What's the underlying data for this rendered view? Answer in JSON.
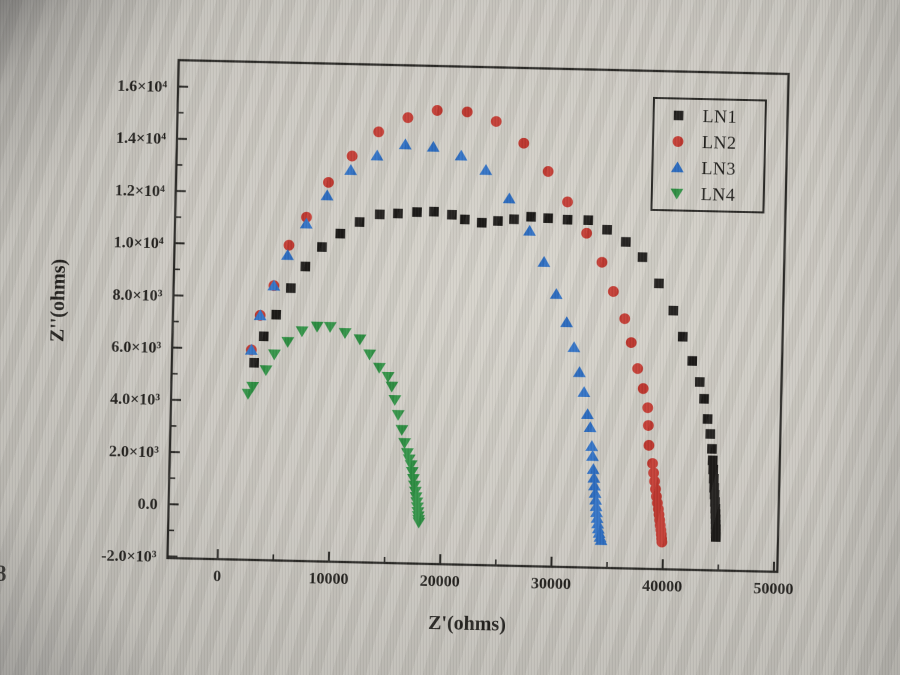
{
  "photo": {
    "stray_left_text": "8"
  },
  "colors": {
    "frame": "#2b2a27",
    "text": "#24221f",
    "ln1": "#1d1b19",
    "ln2": "#c23a31",
    "ln3": "#2f70c4",
    "ln4": "#2f9144"
  },
  "chart_data": {
    "type": "scatter",
    "title": "",
    "xlabel": "Z'(ohms)",
    "ylabel": "Z''(ohms)",
    "xlim": [
      -4600,
      50400
    ],
    "ylim": [
      -2100,
      17050
    ],
    "grid": false,
    "legend_position": "top-right",
    "x_ticks": [
      {
        "value": 0,
        "label": "0"
      },
      {
        "value": 10000,
        "label": "10000"
      },
      {
        "value": 20000,
        "label": "20000"
      },
      {
        "value": 30000,
        "label": "30000"
      },
      {
        "value": 40000,
        "label": "40000"
      },
      {
        "value": 50000,
        "label": "50000"
      }
    ],
    "y_ticks": [
      {
        "value": -2000,
        "label": "-2.0×10³"
      },
      {
        "value": 0,
        "label": "0.0"
      },
      {
        "value": 2000,
        "label": "2.0×10³"
      },
      {
        "value": 4000,
        "label": "4.0×10³"
      },
      {
        "value": 6000,
        "label": "6.0×10³"
      },
      {
        "value": 8000,
        "label": "8.0×10³"
      },
      {
        "value": 10000,
        "label": "1.0×10⁴"
      },
      {
        "value": 12000,
        "label": "1.2×10⁴"
      },
      {
        "value": 14000,
        "label": "1.4×10⁴"
      },
      {
        "value": 16000,
        "label": "1.6×10⁴"
      }
    ],
    "series": [
      {
        "name": "LN1",
        "marker": "square",
        "color": "#1d1b19",
        "points": [
          [
            2880,
            5490
          ],
          [
            3690,
            6510
          ],
          [
            4770,
            7350
          ],
          [
            6030,
            8380
          ],
          [
            7290,
            9220
          ],
          [
            8740,
            9980
          ],
          [
            10360,
            10510
          ],
          [
            12070,
            10970
          ],
          [
            13870,
            11280
          ],
          [
            15500,
            11330
          ],
          [
            17210,
            11400
          ],
          [
            18730,
            11430
          ],
          [
            20350,
            11330
          ],
          [
            21520,
            11160
          ],
          [
            23050,
            11050
          ],
          [
            24500,
            11130
          ],
          [
            25940,
            11210
          ],
          [
            27470,
            11320
          ],
          [
            29000,
            11280
          ],
          [
            30750,
            11240
          ],
          [
            32610,
            11240
          ],
          [
            34320,
            10890
          ],
          [
            36030,
            10440
          ],
          [
            37560,
            9870
          ],
          [
            39090,
            8880
          ],
          [
            40440,
            7850
          ],
          [
            41340,
            6860
          ],
          [
            42240,
            5940
          ],
          [
            42960,
            5140
          ],
          [
            43380,
            4500
          ],
          [
            43740,
            3730
          ],
          [
            44010,
            3160
          ],
          [
            44190,
            2590
          ],
          [
            44280,
            2150
          ],
          [
            44350,
            1800
          ],
          [
            44420,
            1450
          ],
          [
            44470,
            1100
          ],
          [
            44520,
            840
          ],
          [
            44570,
            560
          ],
          [
            44610,
            300
          ],
          [
            44640,
            100
          ],
          [
            44660,
            -100
          ],
          [
            44680,
            -300
          ],
          [
            44700,
            -480
          ],
          [
            44710,
            -640
          ],
          [
            44720,
            -780
          ]
        ]
      },
      {
        "name": "LN2",
        "marker": "circle",
        "color": "#c23a31",
        "points": [
          [
            2610,
            5980
          ],
          [
            3330,
            7310
          ],
          [
            4500,
            8460
          ],
          [
            5770,
            10020
          ],
          [
            7290,
            11110
          ],
          [
            9190,
            12460
          ],
          [
            11260,
            13490
          ],
          [
            13600,
            14440
          ],
          [
            16200,
            15010
          ],
          [
            18820,
            15310
          ],
          [
            21520,
            15280
          ],
          [
            24140,
            14940
          ],
          [
            26660,
            14130
          ],
          [
            28910,
            13070
          ],
          [
            30710,
            11920
          ],
          [
            32490,
            10740
          ],
          [
            33930,
            9640
          ],
          [
            35010,
            8530
          ],
          [
            36090,
            7500
          ],
          [
            36720,
            6590
          ],
          [
            37350,
            5600
          ],
          [
            37890,
            4840
          ],
          [
            38340,
            4110
          ],
          [
            38430,
            3430
          ],
          [
            38520,
            2670
          ],
          [
            38880,
            1980
          ],
          [
            39000,
            1620
          ],
          [
            39100,
            1300
          ],
          [
            39200,
            1000
          ],
          [
            39300,
            720
          ],
          [
            39400,
            470
          ],
          [
            39500,
            240
          ],
          [
            39570,
            30
          ],
          [
            39640,
            -180
          ],
          [
            39700,
            -380
          ],
          [
            39760,
            -560
          ],
          [
            39810,
            -730
          ],
          [
            39850,
            -890
          ],
          [
            39880,
            -1020
          ]
        ]
      },
      {
        "name": "LN3",
        "marker": "triangle-up",
        "color": "#2f70c4",
        "points": [
          [
            2610,
            5980
          ],
          [
            3330,
            7310
          ],
          [
            4500,
            8460
          ],
          [
            5670,
            9640
          ],
          [
            7290,
            10860
          ],
          [
            9100,
            11960
          ],
          [
            11170,
            12950
          ],
          [
            13510,
            13530
          ],
          [
            16020,
            13980
          ],
          [
            18540,
            13910
          ],
          [
            21060,
            13600
          ],
          [
            23310,
            13070
          ],
          [
            25470,
            12000
          ],
          [
            27360,
            10780
          ],
          [
            28720,
            9600
          ],
          [
            29890,
            8380
          ],
          [
            30880,
            7310
          ],
          [
            31590,
            6360
          ],
          [
            32130,
            5410
          ],
          [
            32580,
            4650
          ],
          [
            32940,
            3810
          ],
          [
            33210,
            3310
          ],
          [
            33390,
            2590
          ],
          [
            33480,
            2210
          ],
          [
            33570,
            1710
          ],
          [
            33650,
            1380
          ],
          [
            33720,
            1080
          ],
          [
            33790,
            800
          ],
          [
            33850,
            540
          ],
          [
            33910,
            290
          ],
          [
            33960,
            60
          ],
          [
            34020,
            -160
          ],
          [
            34080,
            -370
          ],
          [
            34150,
            -560
          ],
          [
            34230,
            -730
          ],
          [
            34320,
            -880
          ],
          [
            34420,
            -1000
          ]
        ]
      },
      {
        "name": "LN4",
        "marker": "triangle-down",
        "color": "#2f9144",
        "points": [
          [
            2400,
            4300
          ],
          [
            2790,
            4570
          ],
          [
            3960,
            5220
          ],
          [
            4680,
            5830
          ],
          [
            5860,
            6320
          ],
          [
            7120,
            6740
          ],
          [
            8470,
            6930
          ],
          [
            9640,
            6930
          ],
          [
            10990,
            6710
          ],
          [
            12340,
            6480
          ],
          [
            13240,
            5910
          ],
          [
            14140,
            5410
          ],
          [
            14940,
            5070
          ],
          [
            15300,
            4700
          ],
          [
            15600,
            4190
          ],
          [
            15930,
            3620
          ],
          [
            16290,
            3050
          ],
          [
            16560,
            2550
          ],
          [
            16830,
            2170
          ],
          [
            17000,
            1930
          ],
          [
            17190,
            1710
          ],
          [
            17300,
            1450
          ],
          [
            17420,
            1180
          ],
          [
            17530,
            930
          ],
          [
            17620,
            700
          ],
          [
            17700,
            490
          ],
          [
            17780,
            290
          ],
          [
            17840,
            100
          ],
          [
            17890,
            -80
          ],
          [
            17930,
            -240
          ],
          [
            17970,
            -380
          ],
          [
            18000,
            -480
          ]
        ]
      }
    ]
  }
}
